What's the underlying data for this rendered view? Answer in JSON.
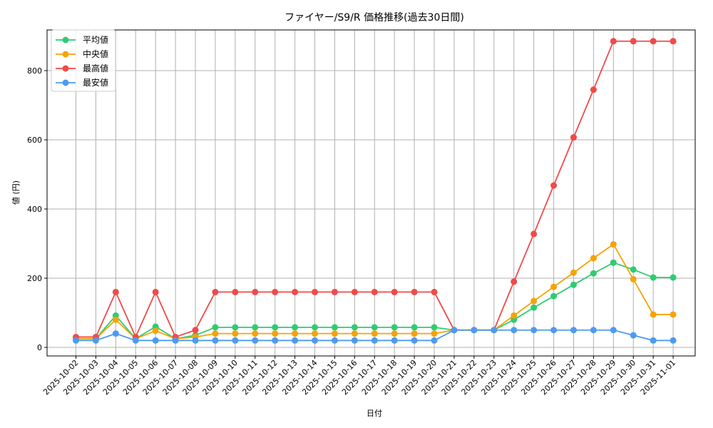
{
  "chart_data": {
    "type": "line",
    "title": "ファイヤー/S9/R 価格推移(過去30日間)",
    "xlabel": "日付",
    "ylabel": "値 (円)",
    "ylim": [
      -25,
      925
    ],
    "yticks": [
      0,
      200,
      400,
      600,
      800
    ],
    "grid": true,
    "legend_position": "upper left",
    "categories": [
      "2025-10-02",
      "2025-10-03",
      "2025-10-04",
      "2025-10-05",
      "2025-10-06",
      "2025-10-07",
      "2025-10-08",
      "2025-10-09",
      "2025-10-10",
      "2025-10-11",
      "2025-10-12",
      "2025-10-13",
      "2025-10-14",
      "2025-10-15",
      "2025-10-16",
      "2025-10-17",
      "2025-10-18",
      "2025-10-19",
      "2025-10-20",
      "2025-10-21",
      "2025-10-22",
      "2025-10-23",
      "2025-10-24",
      "2025-10-25",
      "2025-10-26",
      "2025-10-27",
      "2025-10-28",
      "2025-10-29",
      "2025-10-30",
      "2025-10-31",
      "2025-11-01"
    ],
    "series": [
      {
        "name": "平均値",
        "color": "#2ecc71",
        "values": [
          25,
          25,
          92,
          25,
          60,
          25,
          35,
          58,
          58,
          58,
          58,
          58,
          58,
          58,
          58,
          58,
          58,
          58,
          58,
          50,
          50,
          50,
          80,
          115,
          148,
          181,
          214,
          245,
          225,
          202,
          202
        ]
      },
      {
        "name": "中央値",
        "color": "#f5a30a",
        "values": [
          25,
          25,
          80,
          25,
          48,
          25,
          30,
          40,
          40,
          40,
          40,
          40,
          40,
          40,
          40,
          40,
          40,
          40,
          40,
          50,
          50,
          50,
          92,
          134,
          175,
          216,
          258,
          298,
          197,
          95,
          95
        ]
      },
      {
        "name": "最高値",
        "color": "#f04a4a",
        "values": [
          30,
          30,
          160,
          30,
          160,
          30,
          50,
          160,
          160,
          160,
          160,
          160,
          160,
          160,
          160,
          160,
          160,
          160,
          160,
          50,
          50,
          50,
          190,
          328,
          468,
          607,
          745,
          885,
          885,
          885,
          885
        ]
      },
      {
        "name": "最安値",
        "color": "#4e9af1",
        "values": [
          20,
          20,
          40,
          20,
          20,
          20,
          20,
          20,
          20,
          20,
          20,
          20,
          20,
          20,
          20,
          20,
          20,
          20,
          20,
          50,
          50,
          50,
          50,
          50,
          50,
          50,
          50,
          50,
          35,
          20,
          20
        ]
      }
    ]
  }
}
